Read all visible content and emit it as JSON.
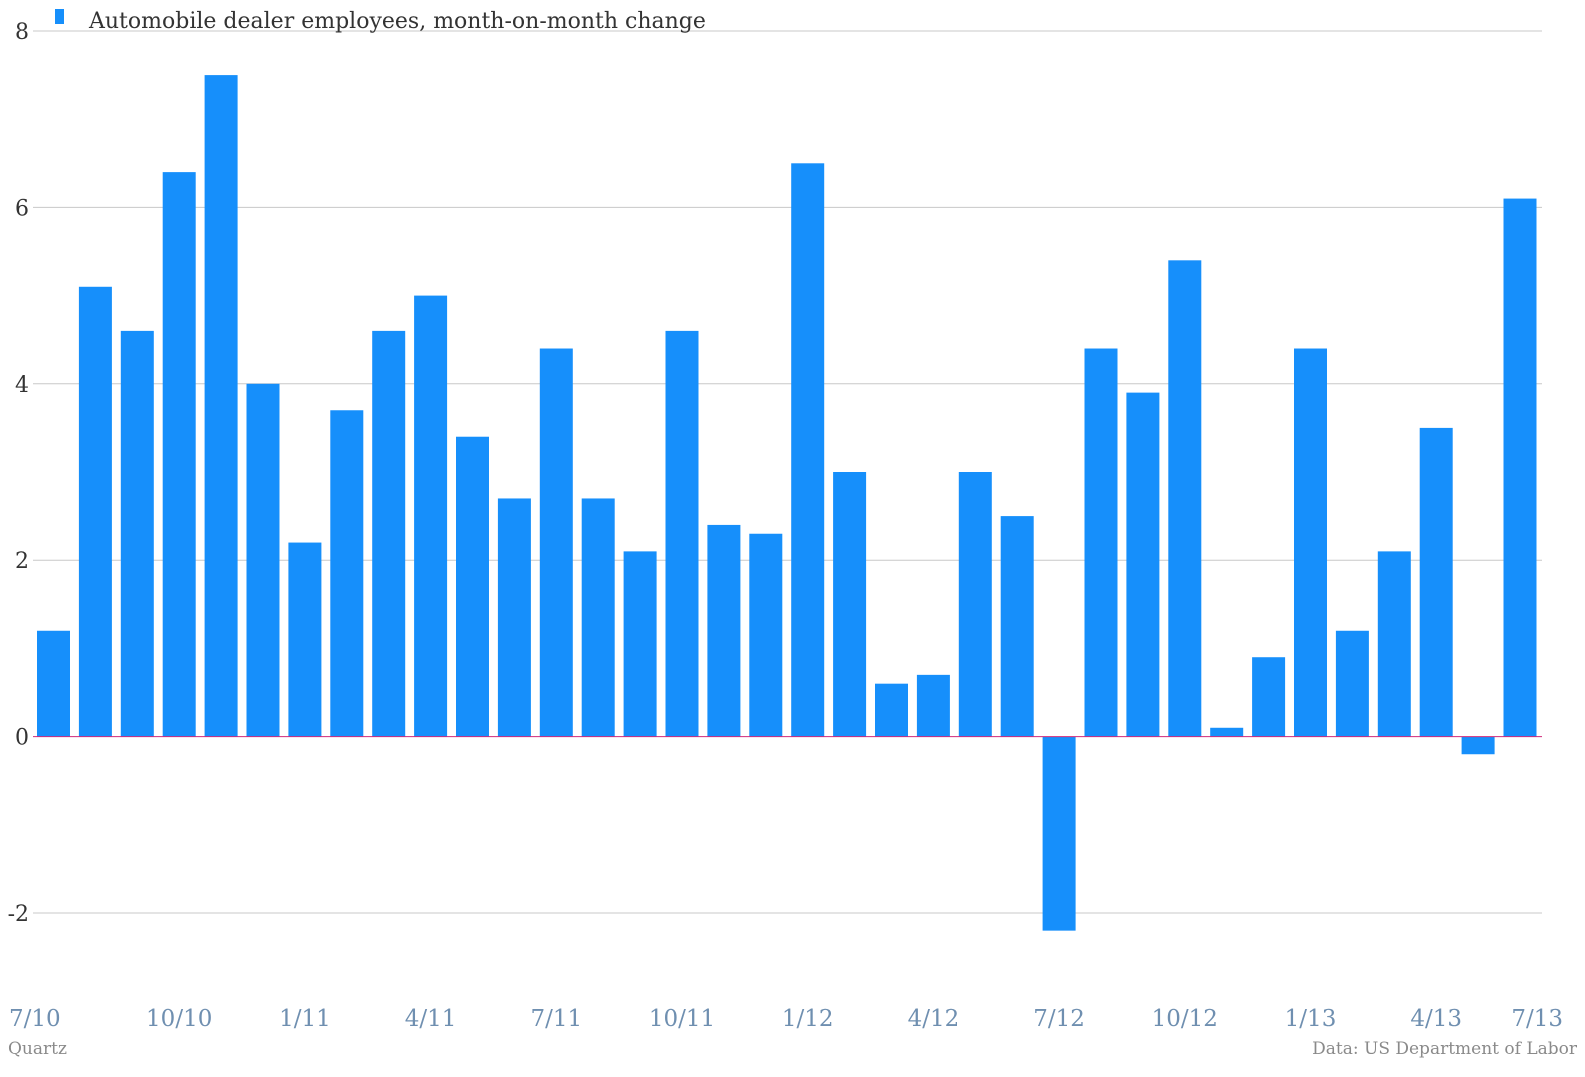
{
  "chart_data": {
    "type": "bar",
    "series": [
      {
        "name": "Automobile dealer employees, month-on-month change",
        "color": "#168FFB",
        "values": [
          1.2,
          5.1,
          4.6,
          6.4,
          7.5,
          4.0,
          2.2,
          3.7,
          4.6,
          5.0,
          3.4,
          2.7,
          4.4,
          2.7,
          2.1,
          4.6,
          2.4,
          2.3,
          6.5,
          3.0,
          0.6,
          0.7,
          3.0,
          2.5,
          -2.2,
          4.4,
          3.9,
          5.4,
          0.1,
          0.9,
          4.4,
          1.2,
          2.1,
          3.5,
          -0.2,
          6.1
        ]
      }
    ],
    "x_tick_labels": [
      "7/10",
      "10/10",
      "1/11",
      "4/11",
      "7/11",
      "10/11",
      "1/12",
      "4/12",
      "7/12",
      "10/12",
      "1/13",
      "4/13",
      "7/13"
    ],
    "y_ticks": [
      "8",
      "6",
      "4",
      "2",
      "0",
      "-2"
    ],
    "ylim": [
      -2,
      8
    ],
    "grid": true,
    "legend_position": "top-left",
    "zero_line_color": "#d0287a",
    "gridline_color": "#c8c8c8"
  },
  "footer": {
    "source_left": "Quartz",
    "source_right": "Data: US Department of Labor"
  }
}
